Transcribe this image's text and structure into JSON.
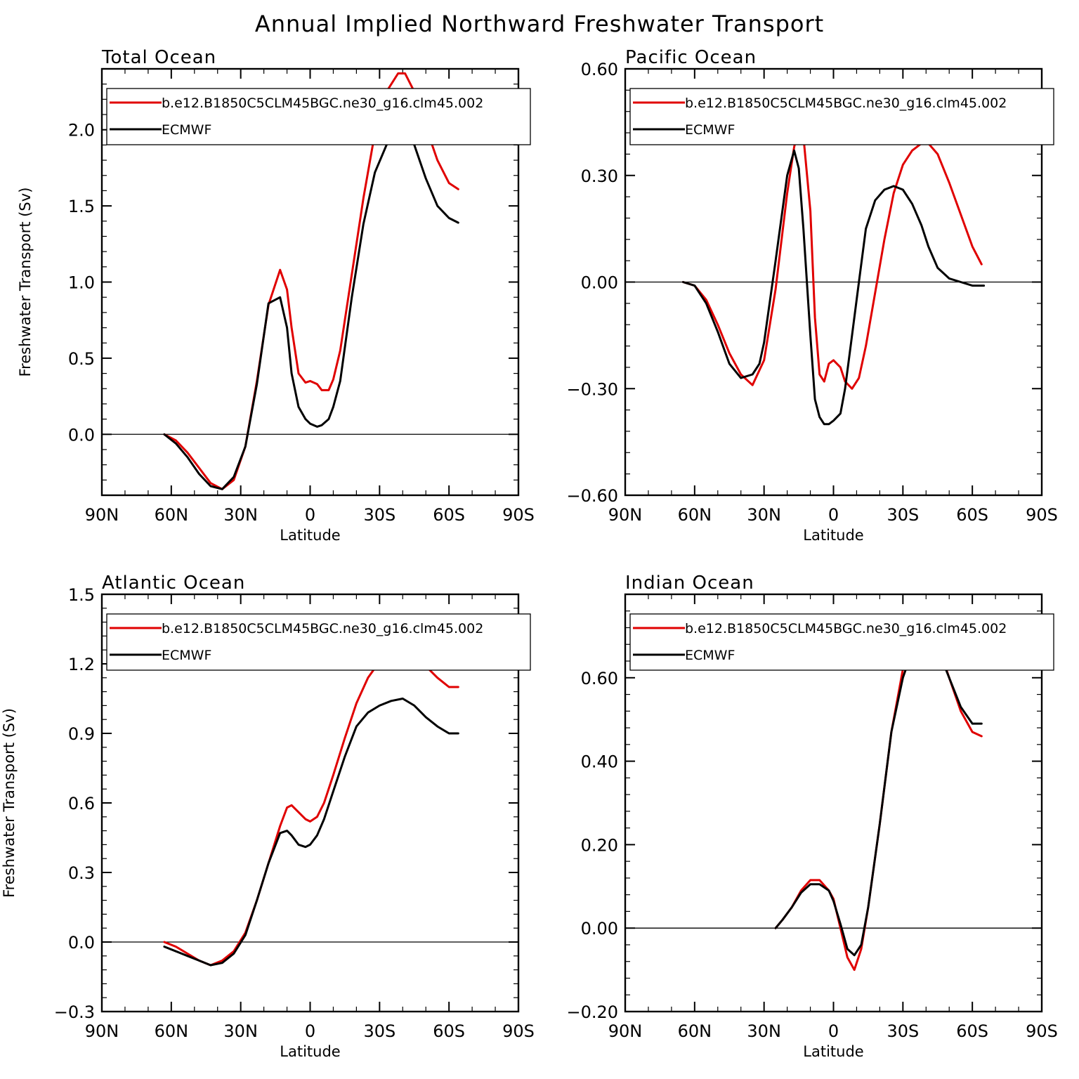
{
  "title": "Annual Implied Northward Freshwater Transport",
  "colors": {
    "model": "#e00000",
    "obs": "#000000"
  },
  "chart_data": [
    {
      "type": "line",
      "title": "Total Ocean",
      "xlabel": "Latitude",
      "ylabel": "Freshwater Transport (Sv)",
      "xlim": [
        90,
        -90
      ],
      "ylim": [
        -0.4,
        2.4
      ],
      "xticks": [
        90,
        60,
        30,
        0,
        -30,
        -60,
        -90
      ],
      "xticklabels": [
        "90N",
        "60N",
        "30N",
        "0",
        "30S",
        "60S",
        "90S"
      ],
      "yticks": [
        0.0,
        0.5,
        1.0,
        1.5,
        2.0
      ],
      "yticklabels": [
        "0.0",
        "0.5",
        "1.0",
        "1.5",
        "2.0"
      ],
      "legend": "top-right",
      "series": [
        {
          "name": "b.e12.B1850C5CLM45BGC.ne30_g16.clm45.002",
          "color": "#e00000",
          "x": [
            63,
            58,
            53,
            48,
            43,
            38,
            33,
            28,
            23,
            18,
            13,
            10,
            8,
            5,
            2,
            0,
            -3,
            -5,
            -8,
            -10,
            -13,
            -18,
            -23,
            -28,
            -33,
            -38,
            -41,
            -45,
            -50,
            -55,
            -60,
            -64
          ],
          "y": [
            0,
            -0.04,
            -0.12,
            -0.22,
            -0.32,
            -0.36,
            -0.3,
            -0.08,
            0.35,
            0.85,
            1.08,
            0.95,
            0.7,
            0.4,
            0.34,
            0.35,
            0.33,
            0.29,
            0.29,
            0.36,
            0.55,
            1.05,
            1.55,
            1.98,
            2.25,
            2.37,
            2.37,
            2.25,
            2.02,
            1.8,
            1.65,
            1.61
          ]
        },
        {
          "name": "ECMWF",
          "color": "#000000",
          "x": [
            63,
            58,
            53,
            48,
            43,
            38,
            33,
            28,
            23,
            18,
            13,
            10,
            8,
            5,
            2,
            0,
            -3,
            -5,
            -8,
            -10,
            -13,
            -18,
            -23,
            -28,
            -33,
            -38,
            -41,
            -45,
            -50,
            -55,
            -60,
            -64
          ],
          "y": [
            0,
            -0.06,
            -0.15,
            -0.26,
            -0.34,
            -0.36,
            -0.28,
            -0.08,
            0.33,
            0.86,
            0.9,
            0.7,
            0.4,
            0.18,
            0.1,
            0.07,
            0.05,
            0.06,
            0.1,
            0.18,
            0.35,
            0.9,
            1.38,
            1.72,
            1.9,
            2.0,
            2.0,
            1.9,
            1.68,
            1.5,
            1.42,
            1.39
          ]
        }
      ]
    },
    {
      "type": "line",
      "title": "Pacific Ocean",
      "xlabel": "Latitude",
      "ylabel": "",
      "xlim": [
        90,
        -90
      ],
      "ylim": [
        -0.6,
        0.6
      ],
      "xticks": [
        90,
        60,
        30,
        0,
        -30,
        -60,
        -90
      ],
      "xticklabels": [
        "90N",
        "60N",
        "30N",
        "0",
        "30S",
        "60S",
        "90S"
      ],
      "yticks": [
        -0.6,
        -0.3,
        0.0,
        0.3,
        0.6
      ],
      "yticklabels": [
        "−0.60",
        "−0.30",
        "0.00",
        "0.30",
        "0.60"
      ],
      "legend": "top-right",
      "series": [
        {
          "name": "b.e12.B1850C5CLM45BGC.ne30_g16.clm45.002",
          "color": "#e00000",
          "x": [
            65,
            60,
            55,
            50,
            45,
            40,
            35,
            30,
            25,
            20,
            17,
            15,
            13,
            10,
            8,
            6,
            4,
            2,
            0,
            -3,
            -5,
            -8,
            -11,
            -14,
            -18,
            -22,
            -26,
            -30,
            -34,
            -38,
            -41,
            -45,
            -50,
            -55,
            -60,
            -64
          ],
          "y": [
            0,
            -0.01,
            -0.05,
            -0.12,
            -0.2,
            -0.26,
            -0.29,
            -0.22,
            -0.02,
            0.25,
            0.38,
            0.43,
            0.41,
            0.2,
            -0.1,
            -0.26,
            -0.28,
            -0.23,
            -0.22,
            -0.24,
            -0.28,
            -0.3,
            -0.27,
            -0.18,
            -0.03,
            0.12,
            0.25,
            0.33,
            0.37,
            0.39,
            0.39,
            0.36,
            0.28,
            0.19,
            0.1,
            0.05
          ]
        },
        {
          "name": "ECMWF",
          "color": "#000000",
          "x": [
            65,
            60,
            55,
            50,
            45,
            40,
            35,
            32,
            30,
            25,
            20,
            17,
            15,
            13,
            10,
            8,
            6,
            4,
            2,
            0,
            -3,
            -5,
            -8,
            -11,
            -14,
            -18,
            -22,
            -26,
            -30,
            -34,
            -38,
            -41,
            -45,
            -50,
            -55,
            -60,
            -64,
            -65
          ],
          "y": [
            0,
            -0.01,
            -0.06,
            -0.14,
            -0.23,
            -0.27,
            -0.26,
            -0.23,
            -0.17,
            0.06,
            0.3,
            0.37,
            0.32,
            0.15,
            -0.15,
            -0.33,
            -0.38,
            -0.4,
            -0.4,
            -0.39,
            -0.37,
            -0.3,
            -0.15,
            0.0,
            0.15,
            0.23,
            0.26,
            0.27,
            0.26,
            0.22,
            0.16,
            0.1,
            0.04,
            0.01,
            0.0,
            -0.01,
            -0.01,
            -0.01
          ]
        }
      ]
    },
    {
      "type": "line",
      "title": "Atlantic Ocean",
      "xlabel": "Latitude",
      "ylabel": "Freshwater Transport (Sv)",
      "xlim": [
        90,
        -90
      ],
      "ylim": [
        -0.3,
        1.5
      ],
      "xticks": [
        90,
        60,
        30,
        0,
        -30,
        -60,
        -90
      ],
      "xticklabels": [
        "90N",
        "60N",
        "30N",
        "0",
        "30S",
        "60S",
        "90S"
      ],
      "yticks": [
        -0.3,
        0.0,
        0.3,
        0.6,
        0.9,
        1.2,
        1.5
      ],
      "yticklabels": [
        "−0.3",
        "0.0",
        "0.3",
        "0.6",
        "0.9",
        "1.2",
        "1.5"
      ],
      "legend": "top-right",
      "series": [
        {
          "name": "b.e12.B1850C5CLM45BGC.ne30_g16.clm45.002",
          "color": "#e00000",
          "x": [
            63,
            58,
            53,
            48,
            43,
            38,
            33,
            28,
            23,
            18,
            13,
            10,
            8,
            5,
            2,
            0,
            -3,
            -6,
            -10,
            -15,
            -20,
            -25,
            -30,
            -35,
            -40,
            -45,
            -50,
            -55,
            -60,
            -64
          ],
          "y": [
            0,
            -0.02,
            -0.05,
            -0.08,
            -0.1,
            -0.08,
            -0.04,
            0.04,
            0.18,
            0.34,
            0.5,
            0.58,
            0.59,
            0.56,
            0.53,
            0.52,
            0.54,
            0.6,
            0.72,
            0.88,
            1.03,
            1.14,
            1.21,
            1.26,
            1.28,
            1.25,
            1.19,
            1.14,
            1.1,
            1.1
          ]
        },
        {
          "name": "ECMWF",
          "color": "#000000",
          "x": [
            63,
            58,
            53,
            48,
            43,
            38,
            33,
            28,
            23,
            18,
            13,
            10,
            8,
            5,
            2,
            0,
            -3,
            -6,
            -10,
            -15,
            -20,
            -25,
            -30,
            -35,
            -40,
            -45,
            -50,
            -55,
            -60,
            -64
          ],
          "y": [
            -0.02,
            -0.04,
            -0.06,
            -0.08,
            -0.1,
            -0.09,
            -0.05,
            0.03,
            0.18,
            0.34,
            0.47,
            0.48,
            0.46,
            0.42,
            0.41,
            0.42,
            0.46,
            0.53,
            0.65,
            0.8,
            0.93,
            0.99,
            1.02,
            1.04,
            1.05,
            1.02,
            0.97,
            0.93,
            0.9,
            0.9
          ]
        }
      ]
    },
    {
      "type": "line",
      "title": "Indian Ocean",
      "xlabel": "Latitude",
      "ylabel": "",
      "xlim": [
        90,
        -90
      ],
      "ylim": [
        -0.2,
        0.8
      ],
      "xticks": [
        90,
        60,
        30,
        0,
        -30,
        -60,
        -90
      ],
      "xticklabels": [
        "90N",
        "60N",
        "30N",
        "0",
        "30S",
        "60S",
        "90S"
      ],
      "yticks": [
        -0.2,
        0.0,
        0.2,
        0.4,
        0.6
      ],
      "yticklabels": [
        "−0.20",
        "0.00",
        "0.20",
        "0.40",
        "0.60"
      ],
      "legend": "top-right",
      "series": [
        {
          "name": "b.e12.B1850C5CLM45BGC.ne30_g16.clm45.002",
          "color": "#e00000",
          "x": [
            25,
            22,
            18,
            14,
            10,
            6,
            2,
            0,
            -3,
            -6,
            -9,
            -12,
            -15,
            -20,
            -25,
            -30,
            -35,
            -40,
            -45,
            -50,
            -55,
            -60,
            -64
          ],
          "y": [
            0,
            0.02,
            0.05,
            0.09,
            0.115,
            0.115,
            0.09,
            0.07,
            0.0,
            -0.07,
            -0.1,
            -0.05,
            0.05,
            0.25,
            0.47,
            0.62,
            0.7,
            0.71,
            0.68,
            0.6,
            0.52,
            0.47,
            0.46
          ]
        },
        {
          "name": "ECMWF",
          "color": "#000000",
          "x": [
            25,
            22,
            18,
            14,
            10,
            6,
            2,
            0,
            -3,
            -6,
            -9,
            -12,
            -15,
            -20,
            -25,
            -30,
            -35,
            -40,
            -45,
            -50,
            -55,
            -60,
            -64
          ],
          "y": [
            0,
            0.02,
            0.05,
            0.085,
            0.105,
            0.105,
            0.09,
            0.065,
            0.01,
            -0.05,
            -0.065,
            -0.04,
            0.05,
            0.25,
            0.47,
            0.6,
            0.68,
            0.7,
            0.67,
            0.6,
            0.53,
            0.49,
            0.49
          ]
        }
      ]
    }
  ]
}
